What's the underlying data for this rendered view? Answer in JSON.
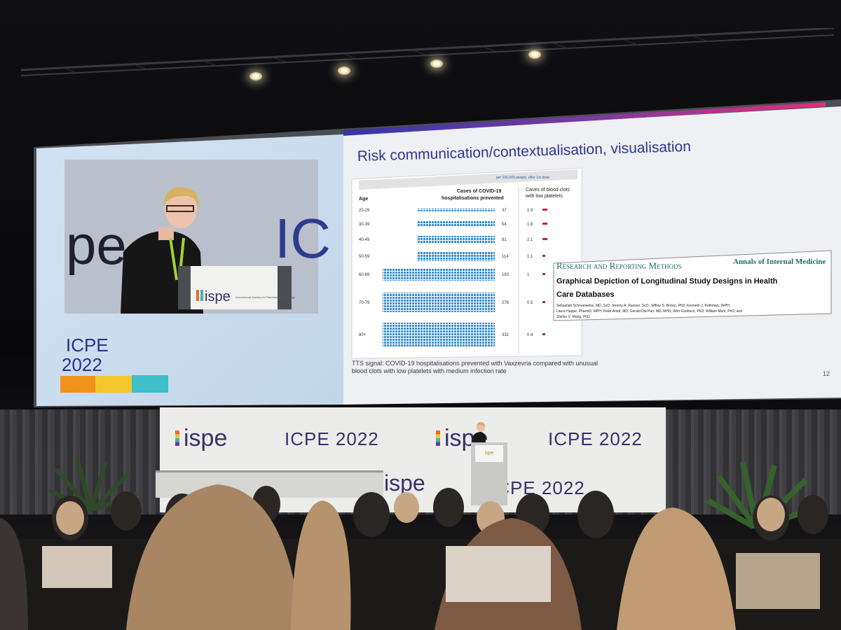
{
  "slide": {
    "title": "Risk communication/contextualisation, visualisation",
    "event_line1": "ICPE",
    "event_line2": "2022",
    "page_number": "12",
    "caption_line1": "TTS signal: COVID-19 hospitalisations prevented with Vaxzevria compared with unusual",
    "caption_line2": "blood clots with low platelets with medium infection rate",
    "colors": {
      "orange": "#f0921c",
      "yellow": "#f4c62d",
      "teal": "#3ebfc9",
      "accent_blue": "#3b3aa0",
      "accent_pink": "#d8327e"
    },
    "live_feed": {
      "backdrop_left": "pe",
      "backdrop_right": "IC",
      "podium_logo": "ispe",
      "podium_sub": "International Society for Pharmacoepidemiology"
    }
  },
  "chart_data": {
    "type": "table",
    "header_note": "per 100,000 people, after 1st dose",
    "col_age": "Age",
    "col_hosp_line1": "Cases of COVID-19",
    "col_hosp_line2": "hospitalisations prevented",
    "col_clots_line1": "Cases of blood clots",
    "col_clots_line2": "with low platelets",
    "rows": [
      {
        "age": "20-29",
        "hospitalisations_prevented": 37,
        "blood_clots": "1.9"
      },
      {
        "age": "30-39",
        "hospitalisations_prevented": 54,
        "blood_clots": "1.8"
      },
      {
        "age": "40-49",
        "hospitalisations_prevented": 81,
        "blood_clots": "2.1"
      },
      {
        "age": "50-59",
        "hospitalisations_prevented": 114,
        "blood_clots": "1.1"
      },
      {
        "age": "60-69",
        "hospitalisations_prevented": 183,
        "blood_clots": "1"
      },
      {
        "age": "70-79",
        "hospitalisations_prevented": 278,
        "blood_clots": "0.5"
      },
      {
        "age": "80+",
        "hospitalisations_prevented": 332,
        "blood_clots": "0.4"
      }
    ]
  },
  "article": {
    "section": "Research and Reporting Methods",
    "journal": "Annals of Internal Medicine",
    "title_line1": "Graphical Depiction of Longitudinal Study Designs in Health",
    "title_line2": "Care Databases",
    "authors_line1": "Sebastian Schneeweiss, MD, ScD; Jeremy A. Rassen, ScD; Jeffrey S. Brown, PhD; Kenneth J. Rothman, DrPH;",
    "authors_line2": "Laura Happe, PharmD, MPH; Peter Arlett, MD; Gerald Dal Pan, MD, MHS; Wim Goettsch, PhD; William Murk, PhD; and",
    "authors_line3": "Shirley V. Wang, PhD"
  },
  "stage": {
    "brand": "ispe",
    "event": "ICPE 2022",
    "podium_label": "ispe"
  }
}
